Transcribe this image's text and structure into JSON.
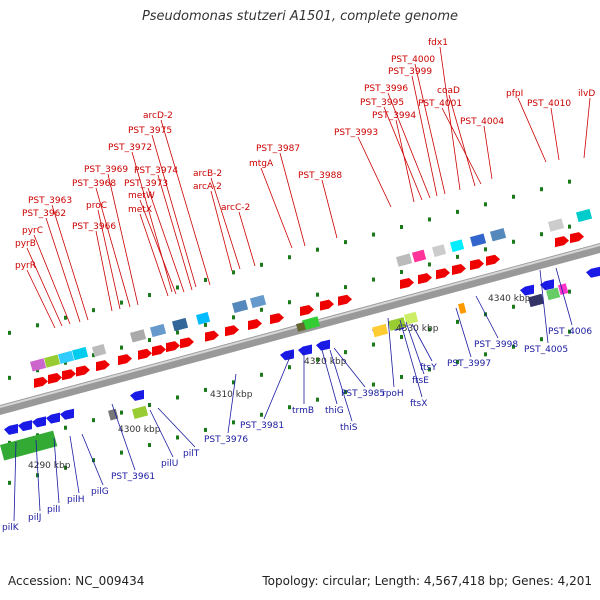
{
  "title": "Pseudomonas stutzeri A1501, complete genome",
  "footer": {
    "accession": "Accession: NC_009434",
    "summary": "Topology: circular; Length: 4,567,418 bp; Genes: 4,201"
  },
  "colors": {
    "top_label": "#cc0000",
    "bottom_label": "#1a1aa0",
    "forward_gene": "#ee0000",
    "reverse_gene": "#1a1ae6",
    "backbone": "#999999",
    "tick_marks": "#1a7a1a",
    "kbp_label": "#333333"
  },
  "scale_labels": [
    "4290 kbp",
    "4300 kbp",
    "4310 kbp",
    "4320 kbp",
    "4330 kbp",
    "4340 kbp"
  ],
  "top_labels": [
    "pyrR",
    "pyrB",
    "pyrC",
    "PST_3962",
    "PST_3963",
    "PST_3966",
    "proC",
    "PST_3968",
    "PST_3969",
    "metX",
    "metW",
    "PST_3973",
    "PST_3974",
    "PST_3972",
    "PST_3975",
    "arcD-2",
    "arcA-2",
    "arcB-2",
    "arcC-2",
    "mtgA",
    "PST_3987",
    "PST_3988",
    "PST_3993",
    "PST_3994",
    "PST_3995",
    "PST_3996",
    "PST_3999",
    "PST_4000",
    "fdx1",
    "coaD",
    "PST_4001",
    "PST_4004",
    "pfpI",
    "PST_4010",
    "ilvD"
  ],
  "bottom_labels": [
    "pilK",
    "pilJ",
    "pilI",
    "pilH",
    "pilG",
    "PST_3961",
    "pilU",
    "pilT",
    "PST_3976",
    "PST_3981",
    "trmB",
    "thiG",
    "thiS",
    "PST_3985",
    "rpoH",
    "ftsX",
    "ftsE",
    "ftsY",
    "PST_3997",
    "PST_3998",
    "PST_4005",
    "PST_4006"
  ]
}
